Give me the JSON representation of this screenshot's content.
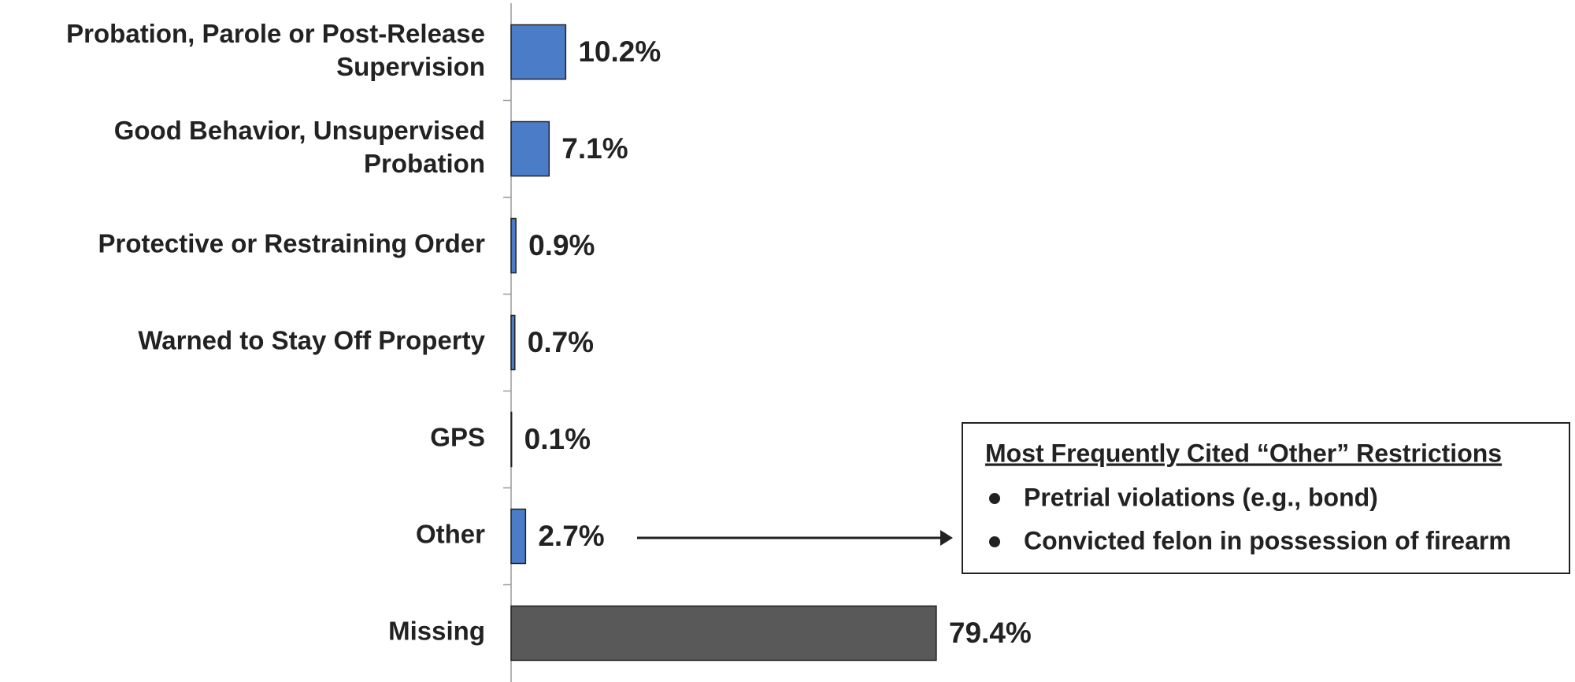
{
  "chart_data": {
    "type": "bar",
    "orientation": "horizontal",
    "categories": [
      "Probation, Parole or Post-Release Supervision",
      "Good Behavior, Unsupervised Probation",
      "Protective or Restraining Order",
      "Warned to Stay Off Property",
      "GPS",
      "Other",
      "Missing"
    ],
    "values": [
      10.2,
      7.1,
      0.9,
      0.7,
      0.1,
      2.7,
      79.4
    ],
    "value_labels": [
      "10.2%",
      "7.1%",
      "0.9%",
      "0.7%",
      "0.1%",
      "2.7%",
      "79.4%"
    ],
    "colors": [
      "#4a7cc8",
      "#4a7cc8",
      "#4a7cc8",
      "#4a7cc8",
      "#4a7cc8",
      "#4a7cc8",
      "#595959"
    ],
    "xlim": [
      0,
      100
    ],
    "annotation": {
      "title": "Most Frequently Cited “Other” Restrictions",
      "items": [
        "Pretrial violations (e.g., bond)",
        "Convicted felon in possession of firearm"
      ]
    }
  }
}
